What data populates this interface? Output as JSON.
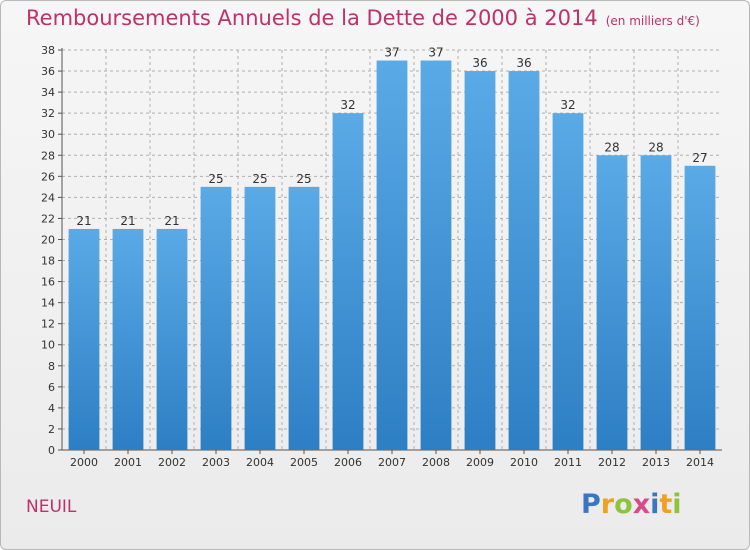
{
  "chart_data": {
    "type": "bar",
    "title": "Remboursements Annuels de la Dette de 2000 à 2014",
    "subtitle": "(en milliers d'€)",
    "categories": [
      "2000",
      "2001",
      "2002",
      "2003",
      "2004",
      "2005",
      "2006",
      "2007",
      "2008",
      "2009",
      "2010",
      "2011",
      "2012",
      "2013",
      "2014"
    ],
    "values": [
      21,
      21,
      21,
      25,
      25,
      25,
      32,
      37,
      37,
      36,
      36,
      32,
      28,
      28,
      27
    ],
    "ylim": [
      0,
      38
    ],
    "yticks": [
      0,
      2,
      4,
      6,
      8,
      10,
      12,
      14,
      16,
      18,
      20,
      22,
      24,
      26,
      28,
      30,
      32,
      34,
      36,
      38
    ],
    "grid": true,
    "bar_color": "#5aaae6",
    "bar_color_dark": "#2d7fc4"
  },
  "footer": {
    "city": "NEUIL",
    "logo": "Proxiti"
  },
  "colors": {
    "title": "#c0306a",
    "grid": "#b0b0b0",
    "axis": "#555555"
  }
}
